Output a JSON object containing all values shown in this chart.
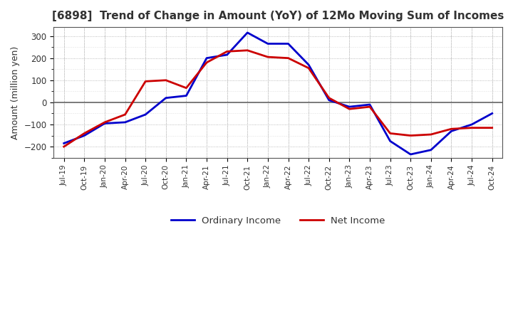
{
  "title": "[6898]  Trend of Change in Amount (YoY) of 12Mo Moving Sum of Incomes",
  "ylabel": "Amount (million yen)",
  "ylim": [
    -250,
    340
  ],
  "yticks": [
    -200,
    -100,
    0,
    100,
    200,
    300
  ],
  "background_color": "#ffffff",
  "grid_color": "#aaaaaa",
  "ordinary_income_color": "#0000cc",
  "net_income_color": "#cc0000",
  "x_labels": [
    "Jul-19",
    "Oct-19",
    "Jan-20",
    "Apr-20",
    "Jul-20",
    "Oct-20",
    "Jan-21",
    "Apr-21",
    "Jul-21",
    "Oct-21",
    "Jan-22",
    "Apr-22",
    "Jul-22",
    "Oct-22",
    "Jan-23",
    "Apr-23",
    "Jul-23",
    "Oct-23",
    "Jan-24",
    "Apr-24",
    "Jul-24",
    "Oct-24"
  ],
  "ordinary_income": [
    -185,
    -150,
    -95,
    -90,
    -55,
    20,
    30,
    200,
    215,
    315,
    265,
    265,
    170,
    10,
    -20,
    -10,
    -175,
    -235,
    -215,
    -130,
    -100,
    -50
  ],
  "net_income": [
    -200,
    -140,
    -90,
    -55,
    95,
    100,
    65,
    180,
    230,
    235,
    205,
    200,
    155,
    20,
    -30,
    -20,
    -140,
    -150,
    -145,
    -120,
    -115,
    -115
  ]
}
